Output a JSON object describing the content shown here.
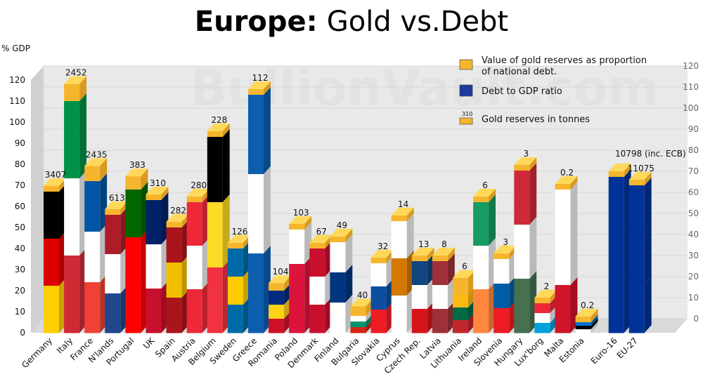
{
  "chart_data": {
    "type": "bar",
    "title_bold": "Europe:",
    "title_rest": "Gold vs.Debt",
    "ylabel": "% GDP",
    "ylim": [
      0,
      120
    ],
    "yticks": [
      0,
      10,
      20,
      30,
      40,
      50,
      60,
      70,
      80,
      90,
      100,
      110,
      120
    ],
    "legend": {
      "gold": "Value of gold reserves as proportion of national debt.",
      "gold_line1": "Value of gold reserves as proportion",
      "gold_line2": "of national debt.",
      "debt": "Debt to GDP ratio",
      "tonnes": "Gold reserves in tonnes",
      "tonnes_sample": "310"
    },
    "watermark": "BullionVault.com",
    "annotations": {
      "eu_note": "10798 (inc. ECB)"
    },
    "colors": {
      "gold": "#f5b62d",
      "gold_top": "#ffd85a",
      "floor": "#d9d9d9",
      "wall": "#e9e9e9"
    },
    "countries": [
      {
        "name": "Germany",
        "debt": 67,
        "gold": 3407,
        "flag": [
          "#000000",
          "#dd0000",
          "#ffce00"
        ]
      },
      {
        "name": "Italy",
        "debt": 110,
        "gold": 2452,
        "gold_pct": 9,
        "flag": [
          "#009246",
          "#ffffff",
          "#ce2b37"
        ]
      },
      {
        "name": "France",
        "debt": 72,
        "gold": 2435,
        "gold_pct": 8,
        "flag": [
          "#0055a4",
          "#ffffff",
          "#ef4135"
        ]
      },
      {
        "name": "N'lands",
        "debt": 56,
        "gold": 613,
        "flag": [
          "#ae1c28",
          "#ffffff",
          "#21468b"
        ]
      },
      {
        "name": "Portugal",
        "debt": 68,
        "gold": 383,
        "gold_pct": 7,
        "flag": [
          "#006600",
          "#ff0000",
          "#ff0000"
        ]
      },
      {
        "name": "UK",
        "debt": 63,
        "gold": 310,
        "flag": [
          "#012169",
          "#ffffff",
          "#c8102e"
        ]
      },
      {
        "name": "Spain",
        "debt": 50,
        "gold": 282,
        "flag": [
          "#aa151b",
          "#f1bf00",
          "#aa151b"
        ]
      },
      {
        "name": "Austria",
        "debt": 62,
        "gold": 280,
        "flag": [
          "#ed2939",
          "#ffffff",
          "#ed2939"
        ]
      },
      {
        "name": "Belgium",
        "debt": 93,
        "gold": 228,
        "gold_pct": 3,
        "flag": [
          "#000000",
          "#fdda24",
          "#ef3340"
        ]
      },
      {
        "name": "Sweden",
        "debt": 40,
        "gold": 126,
        "flag": [
          "#006aa7",
          "#fecc00",
          "#006aa7"
        ]
      },
      {
        "name": "Greece",
        "debt": 113,
        "gold": 112,
        "flag": [
          "#0d5eaf",
          "#ffffff",
          "#0d5eaf"
        ]
      },
      {
        "name": "Romania",
        "debt": 20,
        "gold": 104,
        "gold_pct": 4,
        "flag": [
          "#002b7f",
          "#fcd116",
          "#ce1126"
        ]
      },
      {
        "name": "Poland",
        "debt": 49,
        "gold": 103,
        "flag": [
          "#ffffff",
          "#dc143c",
          "#dc143c"
        ]
      },
      {
        "name": "Denmark",
        "debt": 40,
        "gold": 67,
        "flag": [
          "#c8102e",
          "#ffffff",
          "#c8102e"
        ]
      },
      {
        "name": "Finland",
        "debt": 43,
        "gold": 49,
        "flag": [
          "#ffffff",
          "#003580",
          "#ffffff"
        ]
      },
      {
        "name": "Bulgaria",
        "debt": 8,
        "gold": 40,
        "gold_pct": 5,
        "flag": [
          "#ffffff",
          "#00966e",
          "#d62612"
        ]
      },
      {
        "name": "Slovakia",
        "debt": 33,
        "gold": 32,
        "flag": [
          "#ffffff",
          "#0b4ea2",
          "#ee1c25"
        ]
      },
      {
        "name": "Cyprus",
        "debt": 53,
        "gold": 14,
        "flag": [
          "#ffffff",
          "#d57800",
          "#ffffff"
        ]
      },
      {
        "name": "Czech Rep.",
        "debt": 34,
        "gold": 13,
        "flag": [
          "#11457e",
          "#ffffff",
          "#d7141a"
        ]
      },
      {
        "name": "Latvia",
        "debt": 34,
        "gold": 8,
        "flag": [
          "#9e3039",
          "#ffffff",
          "#9e3039"
        ]
      },
      {
        "name": "Lithuania",
        "debt": 18,
        "gold": 6,
        "gold_pct": 9,
        "flag": [
          "#fdb913",
          "#006a44",
          "#c1272d"
        ]
      },
      {
        "name": "Ireland",
        "debt": 62,
        "gold": 6,
        "flag": [
          "#169b62",
          "#ffffff",
          "#ff883e"
        ]
      },
      {
        "name": "Slovenia",
        "debt": 35,
        "gold": 3,
        "flag": [
          "#ffffff",
          "#005da4",
          "#ed1c24"
        ]
      },
      {
        "name": "Hungary",
        "debt": 77,
        "gold": 3,
        "flag": [
          "#ce2939",
          "#ffffff",
          "#477050"
        ]
      },
      {
        "name": "Lux'borg",
        "debt": 14,
        "gold": 2,
        "flag": [
          "#ed2939",
          "#ffffff",
          "#00a1de"
        ]
      },
      {
        "name": "Malta",
        "debt": 68,
        "gold": 0.2,
        "flag": [
          "#ffffff",
          "#ffffff",
          "#cf142b"
        ]
      },
      {
        "name": "Estonia",
        "debt": 5,
        "gold": 0.2,
        "flag": [
          "#0072ce",
          "#000000",
          "#ffffff"
        ]
      },
      {
        "name": "Euro-16",
        "debt": 74,
        "gold": 10798,
        "flag": [
          "#003399",
          "#003399",
          "#003399"
        ]
      },
      {
        "name": "EU-27",
        "debt": 70,
        "gold": 11075,
        "flag": [
          "#003399",
          "#003399",
          "#003399"
        ]
      }
    ]
  }
}
